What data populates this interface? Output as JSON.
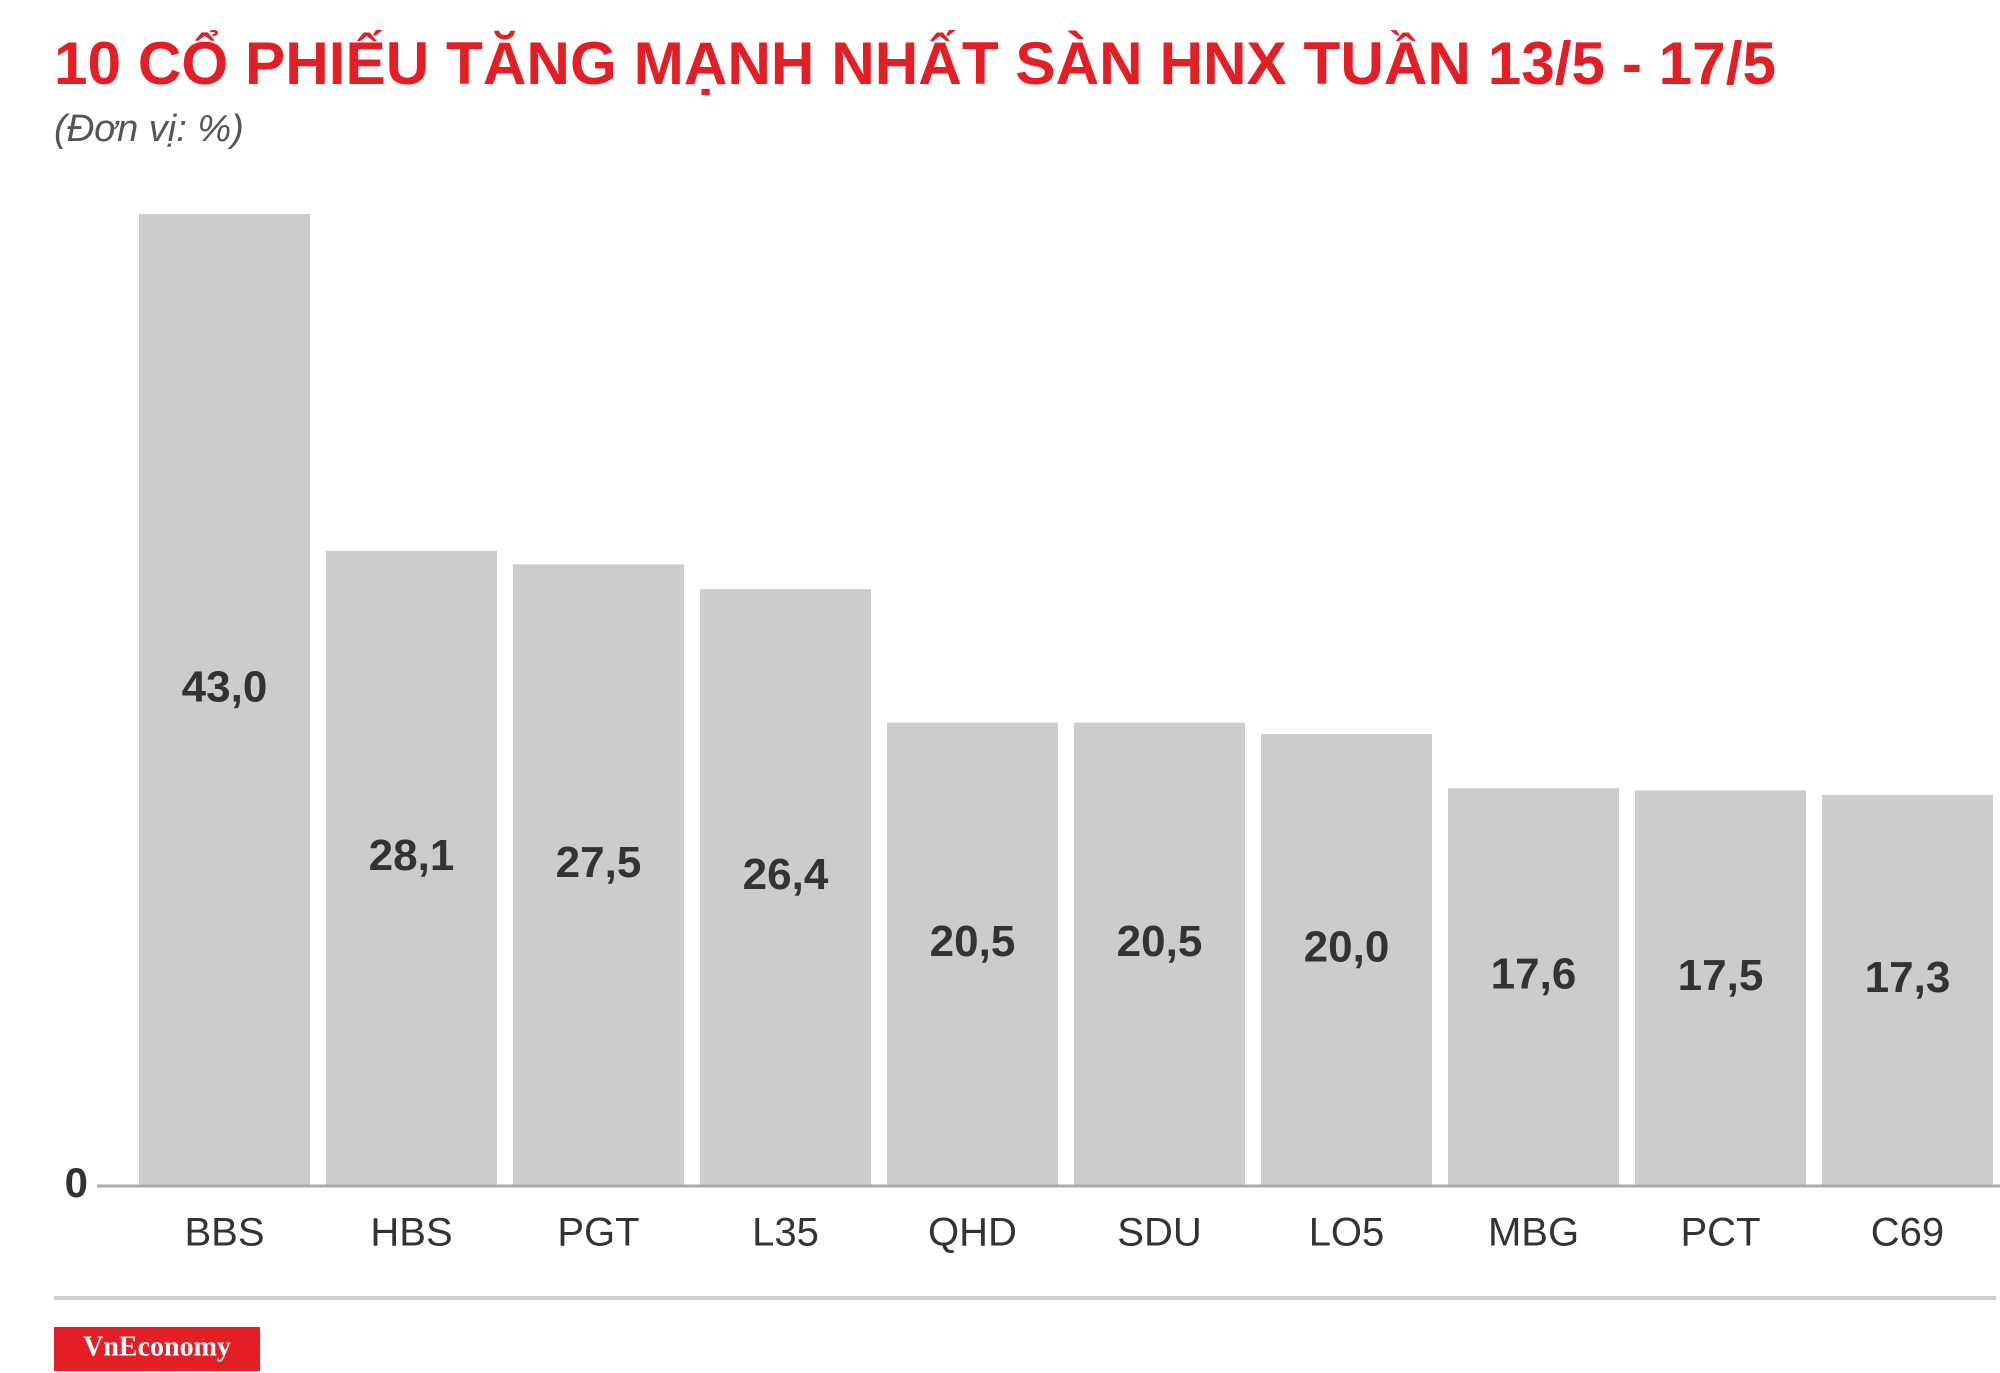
{
  "chart_data": {
    "type": "bar",
    "title": "10 CỔ PHIẾU TĂNG MẠNH NHẤT SÀN HNX TUẦN 13/5 - 17/5",
    "subtitle": "(Đơn vị: %)",
    "categories": [
      "BBS",
      "HBS",
      "PGT",
      "L35",
      "QHD",
      "SDU",
      "LO5",
      "MBG",
      "PCT",
      "C69"
    ],
    "values": [
      43.0,
      28.1,
      27.5,
      26.4,
      20.5,
      20.5,
      20.0,
      17.6,
      17.5,
      17.3
    ],
    "value_labels": [
      "43,0",
      "28,1",
      "27,5",
      "26,4",
      "20,5",
      "20,5",
      "20,0",
      "17,6",
      "17,5",
      "17,3"
    ],
    "color": "#cdcccc",
    "ylim": [
      0,
      43
    ],
    "yticks": [
      0
    ],
    "grid": false
  },
  "brand": "VnEconomy"
}
